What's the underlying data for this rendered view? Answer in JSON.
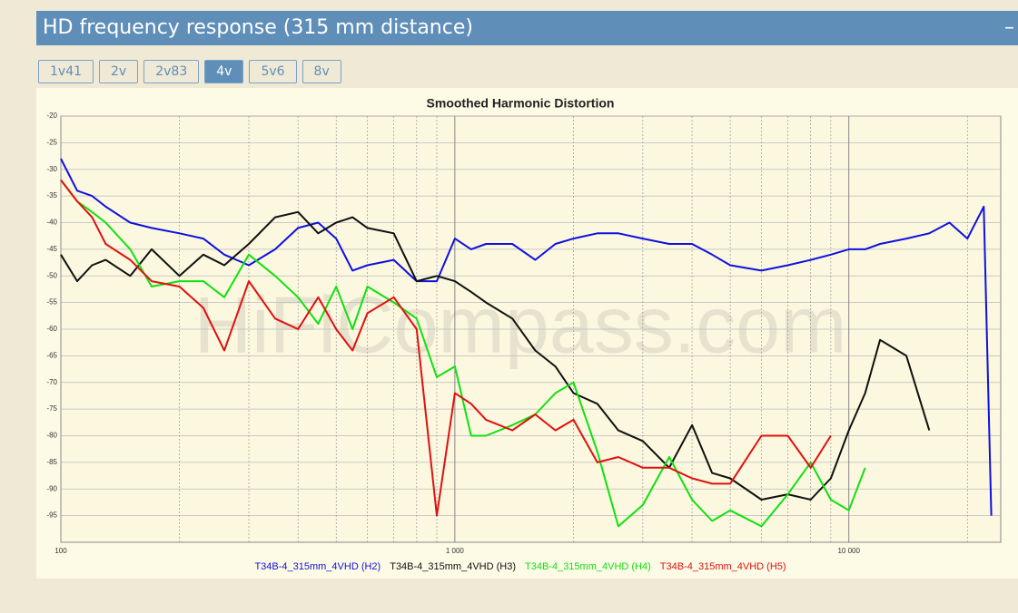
{
  "header": {
    "title": "HD frequency response (315 mm distance)",
    "collapse": "–"
  },
  "tabs": [
    "1v41",
    "2v",
    "2v83",
    "4v",
    "5v6",
    "8v"
  ],
  "active_tab": 3,
  "chart_data": {
    "type": "line",
    "title": "Smoothed Harmonic Distortion",
    "watermark": "HiFiCompass.com",
    "x": [
      100,
      110,
      120,
      130,
      150,
      170,
      200,
      230,
      260,
      300,
      350,
      400,
      450,
      500,
      550,
      600,
      700,
      800,
      900,
      1000,
      1100,
      1200,
      1400,
      1600,
      1800,
      2000,
      2300,
      2600,
      3000,
      3500,
      4000,
      4500,
      5000,
      6000,
      7000,
      8000,
      9000,
      10000,
      11000,
      12000,
      14000,
      16000,
      18000,
      20000,
      22000,
      23000
    ],
    "xlog": true,
    "xlim": [
      100,
      24300
    ],
    "xticks": [
      100,
      {
        "value": 1000,
        "label": "1 000"
      },
      {
        "value": 10000,
        "label": "10 000"
      }
    ],
    "xminorticks": [
      200,
      300,
      400,
      500,
      600,
      700,
      800,
      900,
      2000,
      3000,
      4000,
      5000,
      6000,
      7000,
      8000,
      9000,
      20000
    ],
    "ylim": [
      -100,
      -20
    ],
    "yticks": [
      -20,
      -25,
      -30,
      -35,
      -40,
      -45,
      -50,
      -55,
      -60,
      -65,
      -70,
      -75,
      -80,
      -85,
      -90,
      -95
    ],
    "grid": true,
    "series": [
      {
        "name": "T34B-4_315mm_4VHD (H2)",
        "color": "#1010e0",
        "values": [
          -28,
          -34,
          -35,
          -37,
          -40,
          -41,
          -42,
          -43,
          -46,
          -48,
          -45,
          -41,
          -40,
          -43,
          -49,
          -48,
          -47,
          -51,
          -51,
          -43,
          -45,
          -44,
          -44,
          -47,
          -44,
          -43,
          -42,
          -42,
          -43,
          -44,
          -44,
          -46,
          -48,
          -49,
          -48,
          -47,
          -46,
          -45,
          -45,
          -44,
          -43,
          -42,
          -40,
          -43,
          -37,
          -95
        ]
      },
      {
        "name": "T34B-4_315mm_4VHD (H3)",
        "color": "#101010",
        "values": [
          -46,
          -51,
          -48,
          -47,
          -50,
          -45,
          -50,
          -46,
          -48,
          -44,
          -39,
          -38,
          -42,
          -40,
          -39,
          -41,
          -42,
          -51,
          -50,
          -51,
          -53,
          -55,
          -58,
          -64,
          -67,
          -72,
          -74,
          -79,
          -81,
          -86,
          -78,
          -87,
          -88,
          -92,
          -91,
          -92,
          -88,
          -79,
          -72,
          -62,
          -65,
          -79,
          null,
          null,
          null,
          null
        ]
      },
      {
        "name": "T34B-4_315mm_4VHD (H4)",
        "color": "#10e010",
        "values": [
          -32,
          -36,
          -38,
          -40,
          -45,
          -52,
          -51,
          -51,
          -54,
          -46,
          -50,
          -54,
          -59,
          -52,
          -60,
          -52,
          -55,
          -58,
          -69,
          -67,
          -80,
          -80,
          -78,
          -76,
          -72,
          -70,
          -83,
          -97,
          -93,
          -84,
          -92,
          -96,
          -94,
          -97,
          -91,
          -85,
          -92,
          -94,
          -86,
          null,
          null,
          null,
          null,
          null,
          null,
          null
        ]
      },
      {
        "name": "T34B-4_315mm_4VHD (H5)",
        "color": "#e01010",
        "values": [
          -32,
          -36,
          -39,
          -44,
          -47,
          -51,
          -52,
          -56,
          -64,
          -51,
          -58,
          -60,
          -54,
          -60,
          -64,
          -57,
          -54,
          -60,
          -95,
          -72,
          -74,
          -77,
          -79,
          -76,
          -79,
          -77,
          -85,
          -84,
          -86,
          -86,
          -88,
          -89,
          -89,
          -80,
          -80,
          -86,
          -80,
          null,
          null,
          null,
          null,
          null,
          null,
          null,
          null,
          null
        ]
      }
    ]
  }
}
